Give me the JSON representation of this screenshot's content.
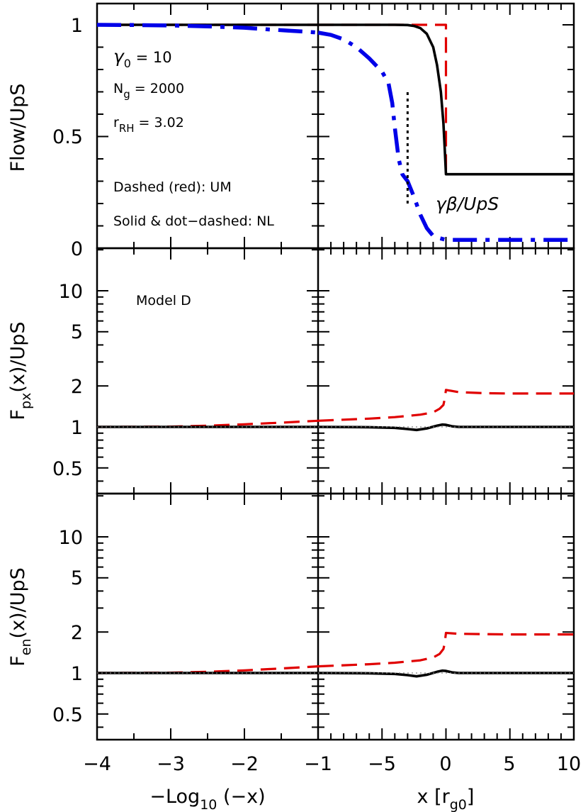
{
  "colors": {
    "um": "#e00000",
    "nl": "#000000",
    "flow_nl": "#0000e8",
    "reference": "#808080",
    "frame": "#000000"
  },
  "xaxis": {
    "left_label": "−Log",
    "left_label_sub": "10",
    "left_label_tail": " (−x)",
    "right_label": "x [r",
    "right_label_sub": "g0",
    "right_label_tail": "]",
    "left_ticks": [
      "−4",
      "−3",
      "−2",
      "−1"
    ],
    "right_ticks": [
      "−5",
      "0",
      "5",
      "10"
    ]
  },
  "panels": {
    "top": {
      "ylabel": "Flow/UpS",
      "yticks": [
        "0",
        "0.5",
        "1"
      ],
      "ann_gamma": "γ",
      "ann_gamma_sub": "0",
      "ann_gamma_tail": " = 10",
      "ann_ng": "N",
      "ann_ng_sub": "g",
      "ann_ng_tail": " = 2000",
      "ann_rrh": "r",
      "ann_rrh_sub": "RH",
      "ann_rrh_tail": " = 3.02",
      "ann_dashed": "Dashed (red): UM",
      "ann_solid": "Solid & dot−dashed: NL",
      "ann_gb": "γβ/UpS"
    },
    "middle": {
      "ylabel": "F",
      "ylabel_sub": "px",
      "ylabel_tail": "(x)/UpS",
      "yticks": [
        "0.5",
        "1",
        "2",
        "5",
        "10"
      ],
      "ann_model": "Model D"
    },
    "bottom": {
      "ylabel": "F",
      "ylabel_sub": "en",
      "ylabel_tail": "(x)/UpS",
      "yticks": [
        "0.5",
        "1",
        "2",
        "5",
        "10"
      ]
    }
  },
  "chart_data": [
    {
      "type": "line",
      "panel": "top",
      "ylabel": "Flow/UpS",
      "ylim": [
        0,
        1.05
      ],
      "x_left_label": "−Log10 (−x)",
      "x_left_lim": [
        -4,
        -1
      ],
      "x_right_label": "x [rg0]",
      "x_right_lim": [
        -10,
        10
      ],
      "x_right_ticks": [
        -5,
        0,
        5,
        10
      ],
      "annotations": [
        "γ0 = 10",
        "Ng = 2000",
        "rRH = 3.02",
        "Dashed (red): UM",
        "Solid & dot−dashed: NL",
        "γβ/UpS"
      ],
      "subshock_marker": {
        "x": -3,
        "y": [
          0.2,
          0.7
        ]
      },
      "series": [
        {
          "style": "dashed",
          "color": "#e00000",
          "left": [
            [
              -4,
              1
            ],
            [
              -1,
              1
            ]
          ],
          "right": [
            [
              -10,
              1
            ],
            [
              0,
              1
            ],
            [
              0,
              0.331
            ],
            [
              10,
              0.331
            ]
          ]
        },
        {
          "style": "solid",
          "color": "#000000",
          "left": [
            [
              -4,
              1
            ],
            [
              -1,
              1
            ]
          ],
          "right": [
            [
              -10,
              1
            ],
            [
              -4,
              1
            ],
            [
              -3,
              0.999
            ],
            [
              -2.5,
              0.995
            ],
            [
              -2,
              0.985
            ],
            [
              -1.5,
              0.96
            ],
            [
              -1,
              0.9
            ],
            [
              -0.7,
              0.82
            ],
            [
              -0.4,
              0.7
            ],
            [
              -0.2,
              0.56
            ],
            [
              -0.1,
              0.45
            ],
            [
              0,
              0.331
            ],
            [
              10,
              0.331
            ]
          ]
        },
        {
          "style": "dot-dashed",
          "color": "#0000e8",
          "left": [
            [
              -4,
              1
            ],
            [
              -3.5,
              0.999
            ],
            [
              -3,
              0.997
            ],
            [
              -2.5,
              0.993
            ],
            [
              -2,
              0.987
            ],
            [
              -1.7,
              0.98
            ],
            [
              -1.4,
              0.974
            ],
            [
              -1.2,
              0.97
            ],
            [
              -1,
              0.965
            ]
          ],
          "right": [
            [
              -10,
              0.965
            ],
            [
              -9,
              0.955
            ],
            [
              -8,
              0.935
            ],
            [
              -7,
              0.9
            ],
            [
              -6,
              0.85
            ],
            [
              -5,
              0.79
            ],
            [
              -4.5,
              0.74
            ],
            [
              -4.2,
              0.65
            ],
            [
              -4,
              0.54
            ],
            [
              -3.7,
              0.4
            ],
            [
              -3.4,
              0.33
            ],
            [
              -3,
              0.3
            ],
            [
              -2.5,
              0.23
            ],
            [
              -2,
              0.15
            ],
            [
              -1.5,
              0.09
            ],
            [
              -1,
              0.055
            ],
            [
              -0.5,
              0.045
            ],
            [
              0,
              0.037
            ],
            [
              5,
              0.037
            ],
            [
              10,
              0.037
            ]
          ]
        }
      ]
    },
    {
      "type": "line",
      "panel": "middle",
      "ylabel": "Fpx(x)/UpS",
      "yscale": "log",
      "ylim": [
        0.3,
        20
      ],
      "annotations": [
        "Model D"
      ],
      "series": [
        {
          "style": "dashed",
          "color": "#e00000",
          "left": [
            [
              -4,
              1
            ],
            [
              -3,
              1.005
            ],
            [
              -2.5,
              1.02
            ],
            [
              -2,
              1.045
            ],
            [
              -1.5,
              1.075
            ],
            [
              -1,
              1.11
            ]
          ],
          "right": [
            [
              -10,
              1.11
            ],
            [
              -8,
              1.13
            ],
            [
              -6,
              1.15
            ],
            [
              -4,
              1.18
            ],
            [
              -2,
              1.23
            ],
            [
              -1,
              1.28
            ],
            [
              -0.5,
              1.36
            ],
            [
              -0.2,
              1.45
            ],
            [
              -0.1,
              1.6
            ],
            [
              0,
              1.87
            ],
            [
              1,
              1.8
            ],
            [
              3,
              1.77
            ],
            [
              5,
              1.76
            ],
            [
              10,
              1.76
            ]
          ]
        },
        {
          "style": "solid",
          "color": "#000000",
          "left": [
            [
              -4,
              1
            ],
            [
              -1,
              1
            ]
          ],
          "right": [
            [
              -10,
              1
            ],
            [
              -6,
              0.995
            ],
            [
              -4,
              0.985
            ],
            [
              -3,
              0.965
            ],
            [
              -2.3,
              0.95
            ],
            [
              -1.5,
              0.975
            ],
            [
              -0.7,
              1.02
            ],
            [
              -0.3,
              1.04
            ],
            [
              0,
              1.035
            ],
            [
              0.5,
              1.01
            ],
            [
              1,
              1.0
            ],
            [
              10,
              1.0
            ]
          ]
        },
        {
          "style": "dotted",
          "color": "#808080",
          "left": [
            [
              -4,
              1
            ],
            [
              -1,
              1
            ]
          ],
          "right": [
            [
              -10,
              1
            ],
            [
              10,
              1
            ]
          ]
        }
      ]
    },
    {
      "type": "line",
      "panel": "bottom",
      "ylabel": "Fen(x)/UpS",
      "yscale": "log",
      "ylim": [
        0.3,
        20
      ],
      "series": [
        {
          "style": "dashed",
          "color": "#e00000",
          "left": [
            [
              -4,
              1
            ],
            [
              -3,
              1.005
            ],
            [
              -2.5,
              1.02
            ],
            [
              -2,
              1.045
            ],
            [
              -1.5,
              1.08
            ],
            [
              -1,
              1.12
            ]
          ],
          "right": [
            [
              -10,
              1.12
            ],
            [
              -8,
              1.14
            ],
            [
              -6,
              1.16
            ],
            [
              -4,
              1.19
            ],
            [
              -2,
              1.24
            ],
            [
              -1,
              1.3
            ],
            [
              -0.5,
              1.38
            ],
            [
              -0.2,
              1.5
            ],
            [
              -0.1,
              1.65
            ],
            [
              0,
              1.97
            ],
            [
              1,
              1.94
            ],
            [
              3,
              1.93
            ],
            [
              5,
              1.92
            ],
            [
              10,
              1.92
            ]
          ]
        },
        {
          "style": "solid",
          "color": "#000000",
          "left": [
            [
              -4,
              1
            ],
            [
              -1,
              1
            ]
          ],
          "right": [
            [
              -10,
              1
            ],
            [
              -6,
              0.995
            ],
            [
              -4,
              0.985
            ],
            [
              -3,
              0.965
            ],
            [
              -2.3,
              0.945
            ],
            [
              -1.5,
              0.97
            ],
            [
              -0.7,
              1.02
            ],
            [
              -0.3,
              1.04
            ],
            [
              0,
              1.035
            ],
            [
              0.5,
              1.01
            ],
            [
              1,
              1.0
            ],
            [
              10,
              1.0
            ]
          ]
        },
        {
          "style": "dotted",
          "color": "#808080",
          "left": [
            [
              -4,
              1
            ],
            [
              -1,
              1
            ]
          ],
          "right": [
            [
              -10,
              1
            ],
            [
              10,
              1
            ]
          ]
        }
      ]
    }
  ]
}
